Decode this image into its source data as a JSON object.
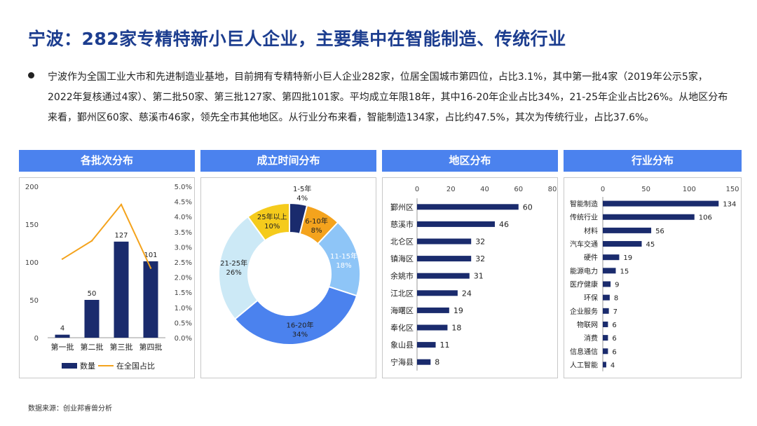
{
  "title": "宁波：282家专精特新小巨人企业，主要集中在智能制造、传统行业",
  "bullet": "宁波作为全国工业大市和先进制造业基地，目前拥有专精特新小巨人企业282家，位居全国城市第四位，占比3.1%，其中第一批4家（2019年公示5家，2022年复核通过4家）、第二批50家、第三批127家、第四批101家。平均成立年限18年，其中16-20年企业占比34%，21-25年企业占比26%。从地区分布来看，鄞州区60家、慈溪市46家，领先全市其他地区。从行业分布来看，智能制造134家，占比约47.5%，其次为传统行业，占比37.6%。",
  "panel_headers": [
    "各批次分布",
    "成立时间分布",
    "地区分布",
    "行业分布"
  ],
  "source": "数据来源：创业邦睿兽分析",
  "colors": {
    "navy": "#1a2b6d",
    "orange": "#f4a31d",
    "header": "#4b82ee"
  },
  "chart_data": [
    {
      "type": "bar",
      "categories": [
        "第一批",
        "第二批",
        "第三批",
        "第四批"
      ],
      "series": [
        {
          "name": "数量",
          "type": "bar",
          "values": [
            4,
            50,
            127,
            101
          ],
          "axis": "left",
          "color": "#1a2b6d"
        },
        {
          "name": "在全国占比",
          "type": "line",
          "values": [
            2.6,
            3.2,
            4.4,
            2.3
          ],
          "axis": "right",
          "color": "#f4a31d"
        }
      ],
      "ylim": [
        0,
        200
      ],
      "y_ticks": [
        "0",
        "50",
        "100",
        "150",
        "200"
      ],
      "y2lim": [
        0,
        5
      ],
      "y2_ticks": [
        "0.0%",
        "0.5%",
        "1.0%",
        "1.5%",
        "2.0%",
        "2.5%",
        "3.0%",
        "3.5%",
        "4.0%",
        "4.5%",
        "5.0%"
      ],
      "legend": "bottom"
    },
    {
      "type": "pie",
      "donut": true,
      "slices": [
        {
          "label": "1-5年",
          "pct": "4%",
          "value": 4,
          "color": "#1a2b6d",
          "text_color": "#222222"
        },
        {
          "label": "6-10年",
          "pct": "8%",
          "value": 8,
          "color": "#f4a31d",
          "text_color": "#222222"
        },
        {
          "label": "11-15年",
          "pct": "18%",
          "value": 18,
          "color": "#8ec5f7",
          "text_color": "#ffffff"
        },
        {
          "label": "16-20年",
          "pct": "34%",
          "value": 34,
          "color": "#4b82ee",
          "text_color": "#222222"
        },
        {
          "label": "21-25年",
          "pct": "26%",
          "value": 26,
          "color": "#cce9f6",
          "text_color": "#222222"
        },
        {
          "label": "25年以上",
          "pct": "10%",
          "value": 10,
          "color": "#f5cb1c",
          "text_color": "#222222"
        }
      ]
    },
    {
      "type": "bar",
      "orientation": "horizontal",
      "categories": [
        "鄞州区",
        "慈溪市",
        "北仑区",
        "镇海区",
        "余姚市",
        "江北区",
        "海曙区",
        "奉化区",
        "象山县",
        "宁海县"
      ],
      "values": [
        60,
        46,
        32,
        32,
        31,
        24,
        19,
        18,
        11,
        8
      ],
      "xlim": [
        0,
        80
      ],
      "x_ticks": [
        "0",
        "20",
        "40",
        "60",
        "80"
      ]
    },
    {
      "type": "bar",
      "orientation": "horizontal",
      "categories": [
        "智能制造",
        "传统行业",
        "材料",
        "汽车交通",
        "硬件",
        "能源电力",
        "医疗健康",
        "环保",
        "企业服务",
        "物联网",
        "消费",
        "信息通信",
        "人工智能"
      ],
      "values": [
        134,
        106,
        56,
        45,
        19,
        15,
        9,
        8,
        7,
        6,
        6,
        6,
        4
      ],
      "xlim": [
        0,
        150
      ],
      "x_ticks": [
        "0",
        "50",
        "100",
        "150"
      ]
    }
  ]
}
